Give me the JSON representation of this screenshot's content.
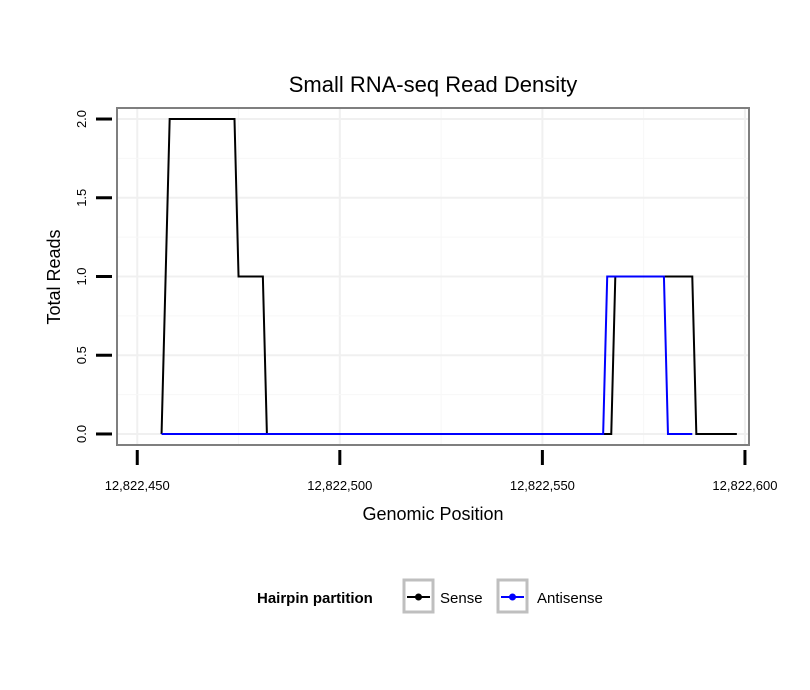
{
  "chart_data": {
    "type": "line",
    "title": "Small RNA-seq Read Density",
    "xlabel": "Genomic Position",
    "ylabel": "Total Reads",
    "xlim": [
      12822445,
      12822601
    ],
    "ylim": [
      -0.07,
      2.07
    ],
    "x_ticks": [
      12822450,
      12822500,
      12822550,
      12822600
    ],
    "x_tick_labels": [
      "12,822,450",
      "12,822,500",
      "12,822,550",
      "12,822,600"
    ],
    "y_ticks": [
      0.0,
      0.5,
      1.0,
      1.5,
      2.0
    ],
    "y_tick_labels": [
      "0.0",
      "0.5",
      "1.0",
      "1.5",
      "2.0"
    ],
    "grid": true,
    "legend": {
      "title": "Hairpin partition",
      "position": "bottom"
    },
    "series": [
      {
        "name": "Sense",
        "color": "#000000",
        "x": [
          12822456,
          12822457,
          12822458,
          12822474,
          12822475,
          12822481,
          12822482,
          12822567,
          12822568,
          12822587,
          12822588,
          12822598
        ],
        "y": [
          0,
          1,
          2,
          2,
          1,
          1,
          0,
          0,
          1,
          1,
          0,
          0
        ]
      },
      {
        "name": "Antisense",
        "color": "#0000ff",
        "x": [
          12822456,
          12822565,
          12822566,
          12822580,
          12822581,
          12822587
        ],
        "y": [
          0,
          0,
          1,
          1,
          0,
          0
        ]
      }
    ]
  }
}
